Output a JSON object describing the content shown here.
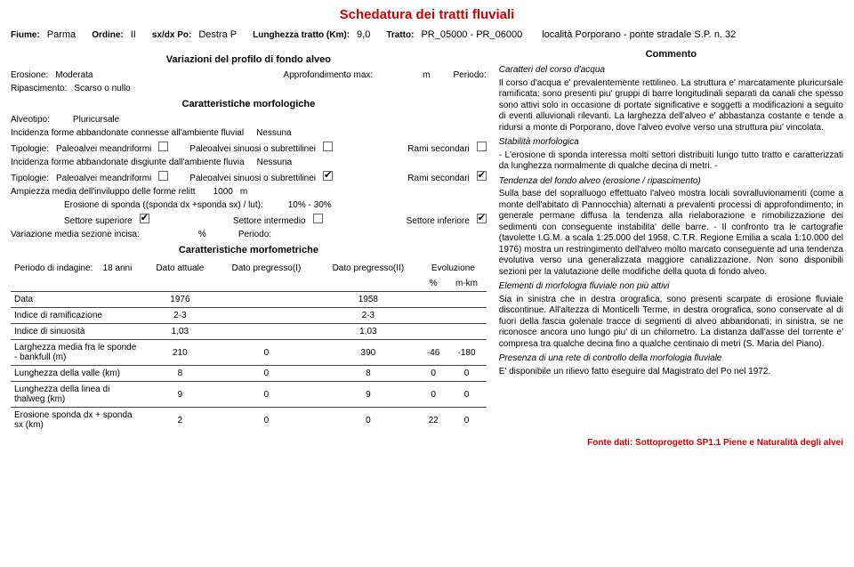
{
  "title": "Schedatura dei tratti fluviali",
  "header": {
    "fiume_l": "Fiume:",
    "fiume": "Parma",
    "ordine_l": "Ordine:",
    "ordine": "II",
    "sxdx_l": "sx/dx Po:",
    "sxdx": "Destra P",
    "lungh_l": "Lunghezza tratto (Km):",
    "lungh": "9,0",
    "tratto_l": "Tratto:",
    "tratto": "PR_05000 - PR_06000",
    "loc": "località Porporano - ponte stradale S.P. n. 32"
  },
  "var_profilo": {
    "h": "Variazioni del profilo di fondo alveo",
    "erosione_l": "Erosione:",
    "erosione": "Moderata",
    "approf_l": "Approfondimento max:",
    "approf_u": "m",
    "periodo_l": "Periodo:",
    "rip_l": "Ripascimento:",
    "rip": "Scarso o nullo"
  },
  "morf": {
    "h": "Caratteristiche morfologiche",
    "alveo_l": "Alveotipo:",
    "alveo": "Pluricursale",
    "inc1_l": "Incidenza forme abbandonate connesse all'ambiente fluvial",
    "inc1": "Nessuna",
    "tip_l": "Tipologie:",
    "pa_mean": "Paleoalvei meandriformi",
    "pa_sin": "Paleoalvei sinuosi o subrettilinei",
    "rami": "Rami secondari",
    "inc2_l": "Incidenza forme abbandonate disgiunte dall'ambiente fluvia",
    "inc2": "Nessuna",
    "amp_l": "Ampiezza media dell'inviluppo delle forme relitt",
    "amp": "1000",
    "amp_u": "m",
    "eros_l": "Erosione di sponda ((sponda dx +sponda sx) / lut):",
    "eros": "10% - 30%",
    "set_sup": "Settore superiore",
    "set_int": "Settore intermedio",
    "set_inf": "Settore inferiore",
    "var_sez_l": "Variazione media sezione incisa:",
    "var_sez_u": "%",
    "var_sez_per_l": "Periodo:"
  },
  "metr": {
    "h": "Caratteristiche morfometriche",
    "per_ind_l": "Periodo di indagine:",
    "per_ind": "18 anni",
    "c_att": "Dato attuale",
    "c_p1": "Dato pregresso(I)",
    "c_p2": "Dato pregresso(II)",
    "c_evo": "Evoluzione",
    "c_pct": "%",
    "c_mkm": "m-km",
    "rows": [
      {
        "l": "Data",
        "a": "1976",
        "p1": "",
        "p2": "1958",
        "e": "",
        "m": ""
      },
      {
        "l": "Indice di ramificazione",
        "a": "2-3",
        "p1": "",
        "p2": "2-3",
        "e": "",
        "m": ""
      },
      {
        "l": "Indice di sinuosità",
        "a": "1,03",
        "p1": "",
        "p2": "1,03",
        "e": "",
        "m": ""
      },
      {
        "l": "Larghezza media fra le sponde - bankfull (m)",
        "a": "210",
        "p1": "0",
        "p2": "390",
        "e": "-46",
        "m": "-180"
      },
      {
        "l": "Lunghezza della valle (km)",
        "a": "8",
        "p1": "0",
        "p2": "8",
        "e": "0",
        "m": "0"
      },
      {
        "l": "Lunghezza della linea di thalweg (km)",
        "a": "9",
        "p1": "0",
        "p2": "9",
        "e": "0",
        "m": "0"
      },
      {
        "l": "Erosione sponda dx + sponda sx (km)",
        "a": "2",
        "p1": "0",
        "p2": "0",
        "e": "22",
        "m": "0"
      }
    ]
  },
  "comm": {
    "h": "Commento",
    "s1_h": "Caratteri del corso d'acqua",
    "s1": "Il corso d'acqua e' prevalentemente rettilineo. La struttura e' marcatamente pluricursale ramificata: sono presenti piu' gruppi di barre longitudinali separati da canali che spesso sono attivi solo in occasione di portate significative e soggetti a modificazioni a seguito di eventi alluvionali rilevanti. La larghezza dell'alveo e' abbastanza costante e tende a ridursi a monte di Porporano, dove l'alveo evolve verso una struttura piu' vincolata.",
    "s2_h": "Stabilità morfologica",
    "s2": "- L'erosione di sponda interessa molti settori distribuiti lungo tutto tratto e caratterizzati da lunghezza normalmente di qualche decina di metri. -",
    "s3_h": "Tendenza del fondo alveo (erosione / ripascimento)",
    "s3": "Sulla base del sopralluogo effettuato l'alveo mostra locali sovralluvionamenti (come a monte dell'abitato di Pannocchia) alternati a prevalenti processi di approfondimento; in generale permane diffusa la tendenza alla rielaborazione e rimobilizzazione dei sedimenti con conseguente instabilita' delle barre. - Il confronto tra le cartografie (tavolette I.G.M. a scala 1:25.000 del 1958, C.T.R. Regione Emilia a scala 1:10.000 del 1976) mostra un restringimento dell'alveo molto marcato conseguente ad una tendenza evolutiva verso una generalizzata maggiore canalizzazione. Non sono disponibili sezioni per la valutazione delle modifiche della quota di fondo alveo.",
    "s4_h": "Elementi di morfologia fluviale non più attivi",
    "s4": "Sia in sinistra che in destra orografica, sono presenti scarpate di erosione fluviale discontinue. All'altezza di Monticelli Terme, in destra orografica, sono conservate al di fuori della fascia golenale tracce di segmenti di alveo abbandonati; in sinistra, se ne riconosce ancora uno lungo piu' di un chilometro. La distanza dall'asse del torrente e' compresa tra qualche decina fino a qualche centinaio di metri (S. Maria del Piano).",
    "s5_h": "Presenza di una rete di controllo della morfologia fluviale",
    "s5": "E' disponibile un rilievo fatto eseguire dal Magistrato del Po nel 1972."
  },
  "footer": "Fonte dati: Sottoprogetto SP1.1  Piene e Naturalità degli alvei",
  "checks": {
    "t1_mean": false,
    "t1_sin": false,
    "t1_rami": false,
    "t2_mean": false,
    "t2_sin": true,
    "t2_rami": true,
    "set_sup": true,
    "set_int": false,
    "set_inf": true
  }
}
